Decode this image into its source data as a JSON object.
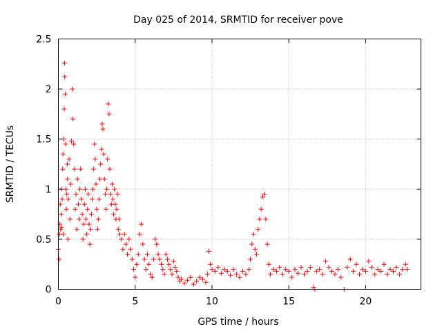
{
  "chart_data": {
    "type": "scatter",
    "title": "Day 025 of 2014, SRMTID for receiver pove",
    "xlabel": "GPS time / hours",
    "ylabel": "SRMTID / TECUs",
    "xlim": [
      0,
      23.6
    ],
    "ylim": [
      0,
      2.5
    ],
    "xticks": [
      0,
      5,
      10,
      15,
      20
    ],
    "yticks": [
      0,
      0.5,
      1,
      1.5,
      2,
      2.5
    ],
    "xtick_labels": [
      "0",
      "5",
      "10",
      "15",
      "20"
    ],
    "ytick_labels": [
      "0",
      "0.5",
      "1",
      "1.5",
      "2",
      "2.5"
    ],
    "grid": true,
    "marker": "+",
    "color": "#ff0000",
    "series": [
      {
        "name": "SRMTID",
        "points": [
          [
            0.0,
            0.4
          ],
          [
            0.05,
            0.3
          ],
          [
            0.08,
            0.55
          ],
          [
            0.1,
            0.65
          ],
          [
            0.12,
            0.85
          ],
          [
            0.15,
            0.6
          ],
          [
            0.18,
            0.75
          ],
          [
            0.2,
            1.0
          ],
          [
            0.22,
            0.62
          ],
          [
            0.25,
            0.9
          ],
          [
            0.28,
            1.2
          ],
          [
            0.3,
            1.35
          ],
          [
            0.32,
            0.55
          ],
          [
            0.35,
            1.5
          ],
          [
            0.38,
            1.8
          ],
          [
            0.4,
            2.26
          ],
          [
            0.42,
            2.12
          ],
          [
            0.45,
            1.95
          ],
          [
            0.48,
            1.45
          ],
          [
            0.5,
            1.0
          ],
          [
            0.52,
            0.8
          ],
          [
            0.55,
            0.95
          ],
          [
            0.58,
            1.25
          ],
          [
            0.6,
            1.1
          ],
          [
            0.62,
            0.5
          ],
          [
            0.65,
            0.9
          ],
          [
            0.7,
            1.3
          ],
          [
            0.75,
            0.7
          ],
          [
            0.8,
            1.05
          ],
          [
            0.85,
            1.48
          ],
          [
            0.9,
            2.0
          ],
          [
            0.95,
            1.7
          ],
          [
            1.0,
            1.45
          ],
          [
            1.05,
            1.2
          ],
          [
            1.1,
            0.8
          ],
          [
            1.15,
            0.95
          ],
          [
            1.2,
            0.6
          ],
          [
            1.25,
            1.1
          ],
          [
            1.3,
            0.85
          ],
          [
            1.35,
            0.7
          ],
          [
            1.4,
            1.0
          ],
          [
            1.45,
            1.2
          ],
          [
            1.5,
            0.9
          ],
          [
            1.55,
            0.75
          ],
          [
            1.6,
            0.5
          ],
          [
            1.65,
            0.65
          ],
          [
            1.7,
            0.85
          ],
          [
            1.75,
            1.0
          ],
          [
            1.8,
            0.7
          ],
          [
            1.85,
            0.55
          ],
          [
            1.9,
            0.8
          ],
          [
            1.95,
            0.95
          ],
          [
            2.0,
            0.65
          ],
          [
            2.05,
            0.45
          ],
          [
            2.1,
            0.6
          ],
          [
            2.15,
            0.75
          ],
          [
            2.2,
            0.9
          ],
          [
            2.25,
            1.0
          ],
          [
            2.3,
            1.2
          ],
          [
            2.35,
            1.45
          ],
          [
            2.4,
            1.3
          ],
          [
            2.45,
            1.05
          ],
          [
            2.5,
            0.8
          ],
          [
            2.55,
            0.6
          ],
          [
            2.6,
            0.7
          ],
          [
            2.65,
            0.9
          ],
          [
            2.7,
            1.1
          ],
          [
            2.75,
            1.25
          ],
          [
            2.8,
            1.4
          ],
          [
            2.85,
            1.65
          ],
          [
            2.9,
            1.6
          ],
          [
            2.95,
            1.35
          ],
          [
            3.0,
            1.1
          ],
          [
            3.05,
            0.95
          ],
          [
            3.1,
            0.8
          ],
          [
            3.15,
            1.0
          ],
          [
            3.2,
            1.3
          ],
          [
            3.25,
            1.85
          ],
          [
            3.3,
            1.75
          ],
          [
            3.35,
            1.2
          ],
          [
            3.4,
            0.95
          ],
          [
            3.45,
            0.85
          ],
          [
            3.5,
            1.05
          ],
          [
            3.55,
            0.9
          ],
          [
            3.6,
            0.75
          ],
          [
            3.65,
            1.0
          ],
          [
            3.7,
            0.85
          ],
          [
            3.75,
            0.7
          ],
          [
            3.8,
            0.8
          ],
          [
            3.85,
            0.95
          ],
          [
            3.9,
            0.6
          ],
          [
            3.95,
            0.7
          ],
          [
            4.0,
            0.55
          ],
          [
            4.1,
            0.5
          ],
          [
            4.2,
            0.4
          ],
          [
            4.3,
            0.55
          ],
          [
            4.4,
            0.45
          ],
          [
            4.5,
            0.35
          ],
          [
            4.6,
            0.5
          ],
          [
            4.7,
            0.4
          ],
          [
            4.8,
            0.3
          ],
          [
            4.9,
            0.2
          ],
          [
            5.0,
            0.12
          ],
          [
            5.1,
            0.25
          ],
          [
            5.2,
            0.35
          ],
          [
            5.3,
            0.55
          ],
          [
            5.4,
            0.65
          ],
          [
            5.5,
            0.45
          ],
          [
            5.6,
            0.3
          ],
          [
            5.7,
            0.2
          ],
          [
            5.8,
            0.35
          ],
          [
            5.9,
            0.25
          ],
          [
            6.0,
            0.15
          ],
          [
            6.1,
            0.12
          ],
          [
            6.2,
            0.3
          ],
          [
            6.3,
            0.5
          ],
          [
            6.4,
            0.45
          ],
          [
            6.5,
            0.35
          ],
          [
            6.6,
            0.3
          ],
          [
            6.7,
            0.25
          ],
          [
            6.8,
            0.2
          ],
          [
            6.9,
            0.15
          ],
          [
            7.0,
            0.35
          ],
          [
            7.1,
            0.3
          ],
          [
            7.2,
            0.25
          ],
          [
            7.3,
            0.2
          ],
          [
            7.4,
            0.15
          ],
          [
            7.5,
            0.28
          ],
          [
            7.6,
            0.22
          ],
          [
            7.7,
            0.18
          ],
          [
            7.8,
            0.12
          ],
          [
            7.9,
            0.08
          ],
          [
            8.0,
            0.1
          ],
          [
            8.2,
            0.06
          ],
          [
            8.4,
            0.09
          ],
          [
            8.6,
            0.12
          ],
          [
            8.8,
            0.05
          ],
          [
            9.0,
            0.08
          ],
          [
            9.2,
            0.12
          ],
          [
            9.4,
            0.1
          ],
          [
            9.6,
            0.07
          ],
          [
            9.7,
            0.15
          ],
          [
            9.8,
            0.38
          ],
          [
            9.9,
            0.25
          ],
          [
            10.0,
            0.2
          ],
          [
            10.2,
            0.18
          ],
          [
            10.4,
            0.22
          ],
          [
            10.6,
            0.16
          ],
          [
            10.8,
            0.2
          ],
          [
            11.0,
            0.18
          ],
          [
            11.2,
            0.14
          ],
          [
            11.4,
            0.2
          ],
          [
            11.6,
            0.15
          ],
          [
            11.8,
            0.12
          ],
          [
            12.0,
            0.18
          ],
          [
            12.2,
            0.15
          ],
          [
            12.4,
            0.2
          ],
          [
            12.5,
            0.3
          ],
          [
            12.6,
            0.45
          ],
          [
            12.7,
            0.55
          ],
          [
            12.8,
            0.4
          ],
          [
            12.9,
            0.35
          ],
          [
            13.0,
            0.6
          ],
          [
            13.1,
            0.7
          ],
          [
            13.2,
            0.8
          ],
          [
            13.3,
            0.92
          ],
          [
            13.4,
            0.95
          ],
          [
            13.5,
            0.7
          ],
          [
            13.6,
            0.45
          ],
          [
            13.7,
            0.25
          ],
          [
            13.8,
            0.15
          ],
          [
            14.0,
            0.2
          ],
          [
            14.2,
            0.18
          ],
          [
            14.4,
            0.22
          ],
          [
            14.6,
            0.15
          ],
          [
            14.8,
            0.2
          ],
          [
            15.0,
            0.18
          ],
          [
            15.2,
            0.12
          ],
          [
            15.4,
            0.2
          ],
          [
            15.6,
            0.16
          ],
          [
            15.8,
            0.22
          ],
          [
            16.0,
            0.15
          ],
          [
            16.2,
            0.18
          ],
          [
            16.4,
            0.22
          ],
          [
            16.6,
            0.02
          ],
          [
            16.7,
            0.0
          ],
          [
            16.8,
            0.18
          ],
          [
            17.0,
            0.2
          ],
          [
            17.2,
            0.15
          ],
          [
            17.4,
            0.28
          ],
          [
            17.6,
            0.22
          ],
          [
            17.8,
            0.18
          ],
          [
            18.0,
            0.15
          ],
          [
            18.2,
            0.2
          ],
          [
            18.4,
            0.12
          ],
          [
            18.6,
            0.0
          ],
          [
            18.8,
            0.22
          ],
          [
            19.0,
            0.3
          ],
          [
            19.2,
            0.18
          ],
          [
            19.4,
            0.25
          ],
          [
            19.6,
            0.15
          ],
          [
            19.8,
            0.2
          ],
          [
            20.0,
            0.18
          ],
          [
            20.2,
            0.28
          ],
          [
            20.4,
            0.22
          ],
          [
            20.6,
            0.15
          ],
          [
            20.8,
            0.2
          ],
          [
            21.0,
            0.18
          ],
          [
            21.2,
            0.25
          ],
          [
            21.4,
            0.15
          ],
          [
            21.6,
            0.2
          ],
          [
            21.8,
            0.18
          ],
          [
            22.0,
            0.22
          ],
          [
            22.2,
            0.15
          ],
          [
            22.4,
            0.2
          ],
          [
            22.6,
            0.25
          ],
          [
            22.7,
            0.2
          ]
        ]
      }
    ]
  }
}
